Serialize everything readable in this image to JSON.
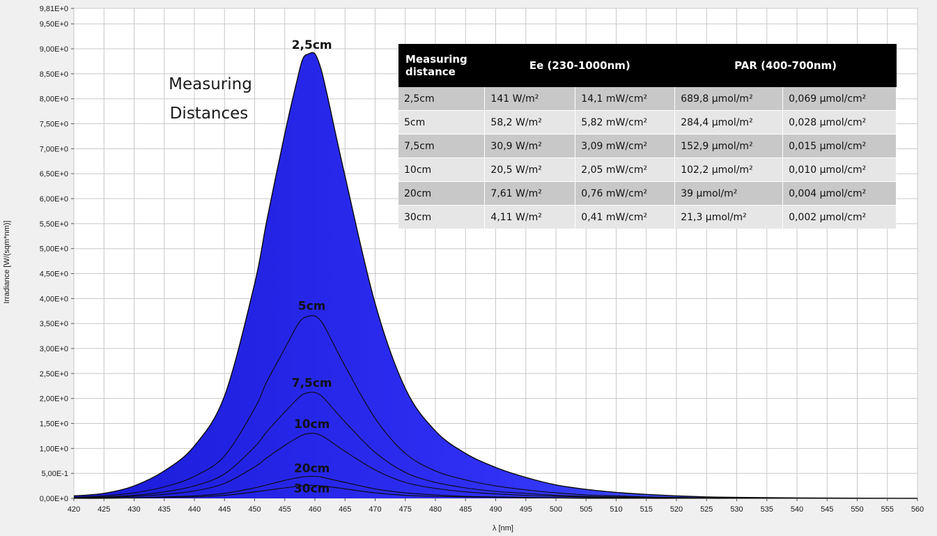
{
  "chart_data": {
    "type": "area",
    "title": "",
    "xlabel": "λ [nm]",
    "ylabel": "Irradiance [W/(sqm*nm)]",
    "xlim": [
      420,
      560
    ],
    "ylim": [
      0,
      9.81
    ],
    "grid": true,
    "x_ticks": [
      "420",
      "425",
      "430",
      "435",
      "440",
      "445",
      "450",
      "455",
      "460",
      "465",
      "470",
      "475",
      "480",
      "485",
      "490",
      "495",
      "500",
      "505",
      "510",
      "515",
      "520",
      "525",
      "530",
      "535",
      "540",
      "545",
      "550",
      "555",
      "560"
    ],
    "y_ticks": [
      {
        "value": 0,
        "label": "0,00E+0"
      },
      {
        "value": 0.5,
        "label": "5,00E-1"
      },
      {
        "value": 1.0,
        "label": "1,00E+0"
      },
      {
        "value": 1.5,
        "label": "1,50E+0"
      },
      {
        "value": 2.0,
        "label": "2,00E+0"
      },
      {
        "value": 2.5,
        "label": "2,50E+0"
      },
      {
        "value": 3.0,
        "label": "3,00E+0"
      },
      {
        "value": 3.5,
        "label": "3,50E+0"
      },
      {
        "value": 4.0,
        "label": "4,00E+0"
      },
      {
        "value": 4.5,
        "label": "4,50E+0"
      },
      {
        "value": 5.0,
        "label": "5,00E+0"
      },
      {
        "value": 5.5,
        "label": "5,50E+0"
      },
      {
        "value": 6.0,
        "label": "6,00E+0"
      },
      {
        "value": 6.5,
        "label": "6,50E+0"
      },
      {
        "value": 7.0,
        "label": "7,00E+0"
      },
      {
        "value": 7.5,
        "label": "7,50E+0"
      },
      {
        "value": 8.0,
        "label": "8,00E+0"
      },
      {
        "value": 8.5,
        "label": "8,50E+0"
      },
      {
        "value": 9.0,
        "label": "9,00E+0"
      },
      {
        "value": 9.5,
        "label": "9,50E+0"
      },
      {
        "value": 9.81,
        "label": "9,81E+0"
      }
    ],
    "x": [
      420,
      425,
      430,
      435,
      440,
      445,
      450,
      452,
      455,
      457,
      458,
      459,
      460,
      461,
      462,
      465,
      470,
      475,
      480,
      485,
      490,
      495,
      500,
      505,
      510,
      515,
      520,
      525,
      530,
      540,
      560
    ],
    "series": [
      {
        "name": "2,5cm",
        "values": [
          0.05,
          0.1,
          0.25,
          0.55,
          1.05,
          2.05,
          4.3,
          5.55,
          7.3,
          8.35,
          8.8,
          8.9,
          8.9,
          8.6,
          8.1,
          6.45,
          3.9,
          2.2,
          1.35,
          0.9,
          0.62,
          0.42,
          0.27,
          0.18,
          0.12,
          0.08,
          0.05,
          0.03,
          0.02,
          0.01,
          0.0
        ]
      },
      {
        "name": "5cm",
        "values": [
          0.02,
          0.05,
          0.11,
          0.23,
          0.44,
          0.85,
          1.8,
          2.33,
          3.0,
          3.45,
          3.6,
          3.65,
          3.65,
          3.55,
          3.35,
          2.65,
          1.6,
          0.9,
          0.55,
          0.37,
          0.25,
          0.17,
          0.11,
          0.07,
          0.05,
          0.03,
          0.02,
          0.01,
          0.01,
          0.0,
          0.0
        ]
      },
      {
        "name": "7,5cm",
        "values": [
          0.01,
          0.03,
          0.06,
          0.13,
          0.25,
          0.49,
          1.03,
          1.33,
          1.73,
          1.98,
          2.08,
          2.12,
          2.12,
          2.06,
          1.94,
          1.53,
          0.92,
          0.52,
          0.32,
          0.21,
          0.14,
          0.1,
          0.06,
          0.04,
          0.03,
          0.02,
          0.01,
          0.01,
          0.0,
          0.0,
          0.0
        ]
      },
      {
        "name": "10cm",
        "values": [
          0.01,
          0.02,
          0.04,
          0.08,
          0.15,
          0.3,
          0.63,
          0.81,
          1.06,
          1.21,
          1.27,
          1.3,
          1.3,
          1.26,
          1.19,
          0.94,
          0.57,
          0.32,
          0.2,
          0.13,
          0.09,
          0.06,
          0.04,
          0.03,
          0.02,
          0.01,
          0.01,
          0.0,
          0.0,
          0.0,
          0.0
        ]
      },
      {
        "name": "20cm",
        "values": [
          0.0,
          0.01,
          0.01,
          0.03,
          0.05,
          0.1,
          0.21,
          0.27,
          0.36,
          0.41,
          0.43,
          0.44,
          0.44,
          0.43,
          0.4,
          0.32,
          0.19,
          0.11,
          0.07,
          0.04,
          0.03,
          0.02,
          0.01,
          0.01,
          0.01,
          0.0,
          0.0,
          0.0,
          0.0,
          0.0,
          0.0
        ]
      },
      {
        "name": "30cm",
        "values": [
          0.0,
          0.0,
          0.01,
          0.02,
          0.03,
          0.06,
          0.13,
          0.16,
          0.21,
          0.24,
          0.25,
          0.26,
          0.26,
          0.25,
          0.24,
          0.19,
          0.11,
          0.06,
          0.04,
          0.03,
          0.02,
          0.01,
          0.01,
          0.0,
          0.0,
          0.0,
          0.0,
          0.0,
          0.0,
          0.0,
          0.0
        ]
      }
    ],
    "annotations": {
      "measuring": "Measuring",
      "distances": "Distances",
      "curve_labels": [
        "2,5cm",
        "5cm",
        "7,5cm",
        "10cm",
        "20cm",
        "30cm"
      ]
    },
    "colors": {
      "fill_dark": "#1c1ce0",
      "fill_mid": "#3b3bff",
      "fill_light": "#4a6cff",
      "line": "#0a0a0a",
      "grid": "#c8c8c8",
      "plot_bg": "#ffffff"
    }
  },
  "table": {
    "header": {
      "col1": [
        "Measuring",
        "distance"
      ],
      "ee": "Ee  (230-1000nm)",
      "par": "PAR (400-700nm)"
    },
    "rows": [
      [
        "2,5cm",
        "141 W/m²",
        "14,1 mW/cm²",
        "689,8 µmol/m²",
        "0,069 µmol/cm²"
      ],
      [
        "5cm",
        "58,2 W/m²",
        "5,82 mW/cm²",
        "284,4 µmol/m²",
        "0,028 µmol/cm²"
      ],
      [
        "7,5cm",
        "30,9 W/m²",
        "3,09 mW/cm²",
        "152,9 µmol/m²",
        "0,015 µmol/cm²"
      ],
      [
        "10cm",
        "20,5 W/m²",
        "2,05 mW/cm²",
        "102,2 µmol/m²",
        "0,010 µmol/cm²"
      ],
      [
        "20cm",
        "7,61 W/m²",
        "0,76 mW/cm²",
        "39 µmol/m²",
        "0,004 µmol/cm²"
      ],
      [
        "30cm",
        "4,11 W/m²",
        "0,41 mW/cm²",
        "21,3 µmol/m²",
        "0,002 µmol/cm²"
      ]
    ]
  }
}
